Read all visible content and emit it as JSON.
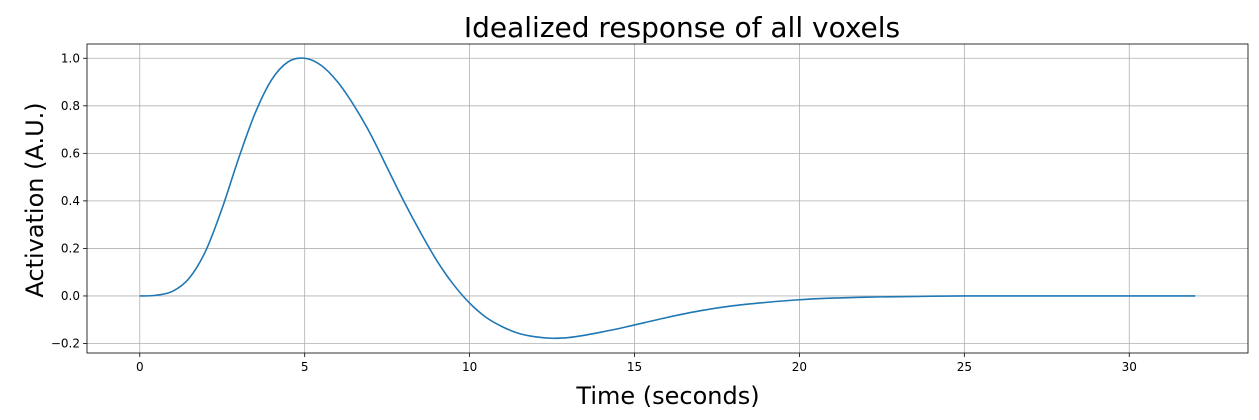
{
  "chart_data": {
    "type": "line",
    "title": "Idealized response of all voxels",
    "xlabel": "Time (seconds)",
    "ylabel": "Activation (A.U.)",
    "xlim": [
      -1.6,
      33.6
    ],
    "ylim": [
      -0.24,
      1.06
    ],
    "xticks": [
      0,
      5,
      10,
      15,
      20,
      25,
      30
    ],
    "xtick_labels": [
      "0",
      "5",
      "10",
      "15",
      "20",
      "25",
      "30"
    ],
    "yticks": [
      -0.2,
      0.0,
      0.2,
      0.4,
      0.6,
      0.8,
      1.0
    ],
    "ytick_labels": [
      "−0.2",
      "0.0",
      "0.2",
      "0.4",
      "0.6",
      "0.8",
      "1.0"
    ],
    "grid": true,
    "series": [
      {
        "color": "#1f77b4",
        "x": [
          0,
          0.5,
          1,
          1.5,
          2,
          2.5,
          3,
          3.5,
          4,
          4.5,
          5,
          5.5,
          6,
          6.5,
          7,
          7.5,
          8,
          8.5,
          9,
          9.5,
          10,
          10.5,
          11,
          11.5,
          12,
          12.5,
          13,
          13.5,
          14,
          14.5,
          15,
          16,
          17,
          18,
          19,
          20,
          21,
          22,
          23,
          24,
          25,
          26,
          27,
          28,
          29,
          30,
          31,
          32
        ],
        "y": [
          0.0,
          0.003,
          0.02,
          0.075,
          0.19,
          0.37,
          0.58,
          0.77,
          0.91,
          0.985,
          1.0,
          0.97,
          0.9,
          0.8,
          0.68,
          0.54,
          0.4,
          0.27,
          0.15,
          0.05,
          -0.03,
          -0.09,
          -0.13,
          -0.158,
          -0.172,
          -0.178,
          -0.175,
          -0.165,
          -0.152,
          -0.138,
          -0.122,
          -0.09,
          -0.062,
          -0.041,
          -0.027,
          -0.016,
          -0.009,
          -0.005,
          -0.003,
          -0.001,
          0.0,
          0.0,
          0.0,
          0.0,
          0.0,
          0.0,
          0.0,
          0.0
        ]
      }
    ]
  }
}
